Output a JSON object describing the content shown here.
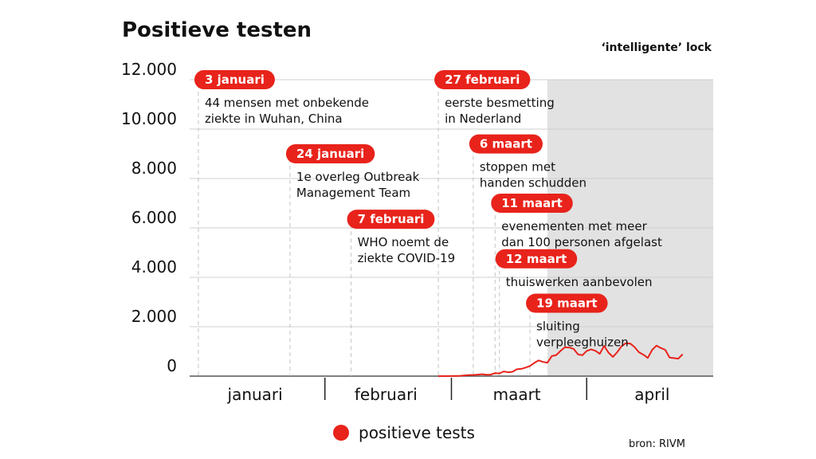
{
  "chart_data": {
    "type": "line",
    "title": "Positieve testen",
    "shaded_region_label": "‘intelligente’ lock",
    "source": "bron: RIVM",
    "ylim": [
      0,
      12000
    ],
    "yticks": [
      {
        "value": 0,
        "label": "0"
      },
      {
        "value": 2000,
        "label": "2.000"
      },
      {
        "value": 4000,
        "label": "4.000"
      },
      {
        "value": 6000,
        "label": "6.000"
      },
      {
        "value": 8000,
        "label": "8.000"
      },
      {
        "value": 10000,
        "label": "10.000"
      },
      {
        "value": 12000,
        "label": "12.000"
      }
    ],
    "x_start": "2020-01-01",
    "x_end": "2020-04-30",
    "xticks": [
      {
        "label": "januari",
        "center": "2020-01-16"
      },
      {
        "label": "februari",
        "center": "2020-02-15"
      },
      {
        "label": "maart",
        "center": "2020-03-16"
      },
      {
        "label": "april",
        "center": "2020-04-16"
      }
    ],
    "month_boundaries": [
      "2020-02-01",
      "2020-03-01",
      "2020-04-01"
    ],
    "lockdown_start": "2020-03-23",
    "grid": true,
    "legend": "bottom",
    "series": [
      {
        "name": "positieve tests",
        "color": "#e8231b",
        "points": [
          {
            "x": "2020-02-27",
            "y": 1
          },
          {
            "x": "2020-03-01",
            "y": 4
          },
          {
            "x": "2020-03-03",
            "y": 14
          },
          {
            "x": "2020-03-05",
            "y": 44
          },
          {
            "x": "2020-03-06",
            "y": 46
          },
          {
            "x": "2020-03-07",
            "y": 60
          },
          {
            "x": "2020-03-08",
            "y": 77
          },
          {
            "x": "2020-03-09",
            "y": 56
          },
          {
            "x": "2020-03-10",
            "y": 61
          },
          {
            "x": "2020-03-11",
            "y": 121
          },
          {
            "x": "2020-03-12",
            "y": 111
          },
          {
            "x": "2020-03-13",
            "y": 190
          },
          {
            "x": "2020-03-14",
            "y": 155
          },
          {
            "x": "2020-03-15",
            "y": 176
          },
          {
            "x": "2020-03-16",
            "y": 278
          },
          {
            "x": "2020-03-17",
            "y": 292
          },
          {
            "x": "2020-03-18",
            "y": 346
          },
          {
            "x": "2020-03-19",
            "y": 409
          },
          {
            "x": "2020-03-20",
            "y": 534
          },
          {
            "x": "2020-03-21",
            "y": 637
          },
          {
            "x": "2020-03-22",
            "y": 573
          },
          {
            "x": "2020-03-23",
            "y": 545
          },
          {
            "x": "2020-03-24",
            "y": 811
          },
          {
            "x": "2020-03-25",
            "y": 852
          },
          {
            "x": "2020-03-26",
            "y": 1019
          },
          {
            "x": "2020-03-27",
            "y": 1172
          },
          {
            "x": "2020-03-28",
            "y": 1159
          },
          {
            "x": "2020-03-29",
            "y": 1104
          },
          {
            "x": "2020-03-30",
            "y": 884
          },
          {
            "x": "2020-03-31",
            "y": 845
          },
          {
            "x": "2020-04-01",
            "y": 1019
          },
          {
            "x": "2020-04-02",
            "y": 1083
          },
          {
            "x": "2020-04-03",
            "y": 1026
          },
          {
            "x": "2020-04-04",
            "y": 904
          },
          {
            "x": "2020-04-05",
            "y": 1224
          },
          {
            "x": "2020-04-06",
            "y": 952
          },
          {
            "x": "2020-04-07",
            "y": 777
          },
          {
            "x": "2020-04-08",
            "y": 969
          },
          {
            "x": "2020-04-09",
            "y": 1213
          },
          {
            "x": "2020-04-10",
            "y": 1335
          },
          {
            "x": "2020-04-11",
            "y": 1316
          },
          {
            "x": "2020-04-12",
            "y": 1174
          },
          {
            "x": "2020-04-13",
            "y": 964
          },
          {
            "x": "2020-04-14",
            "y": 868
          },
          {
            "x": "2020-04-15",
            "y": 734
          },
          {
            "x": "2020-04-16",
            "y": 1061
          },
          {
            "x": "2020-04-17",
            "y": 1235
          },
          {
            "x": "2020-04-18",
            "y": 1140
          },
          {
            "x": "2020-04-19",
            "y": 1066
          },
          {
            "x": "2020-04-20",
            "y": 750
          },
          {
            "x": "2020-04-21",
            "y": 729
          },
          {
            "x": "2020-04-22",
            "y": 708
          },
          {
            "x": "2020-04-23",
            "y": 887
          }
        ]
      }
    ],
    "annotations": [
      {
        "date": "2020-01-03",
        "label": "3 januari",
        "lines": [
          "44 mensen met onbekende",
          "ziekte in Wuhan, China"
        ],
        "y_value": 12000
      },
      {
        "date": "2020-01-24",
        "label": "24 januari",
        "lines": [
          "1e overleg Outbreak",
          "Management Team"
        ],
        "y_value": 9000
      },
      {
        "date": "2020-02-07",
        "label": "7 februari",
        "lines": [
          "WHO noemt de",
          "ziekte COVID-19"
        ],
        "y_value": 6350
      },
      {
        "date": "2020-02-27",
        "label": "27 februari",
        "lines": [
          "eerste besmetting",
          "in Nederland"
        ],
        "y_value": 12000
      },
      {
        "date": "2020-03-06",
        "label": "6 maart",
        "lines": [
          "stoppen met",
          "handen schudden"
        ],
        "y_value": 9400
      },
      {
        "date": "2020-03-11",
        "label": "11 maart",
        "lines": [
          "evenementen met meer",
          "dan 100 personen afgelast"
        ],
        "y_value": 7000
      },
      {
        "date": "2020-03-12",
        "label": "12 maart",
        "lines": [
          "thuiswerken aanbevolen"
        ],
        "y_value": 4750
      },
      {
        "date": "2020-03-19",
        "label": "19 maart",
        "lines": [
          "sluiting",
          "verpleeghuizen"
        ],
        "y_value": 2950
      }
    ]
  }
}
